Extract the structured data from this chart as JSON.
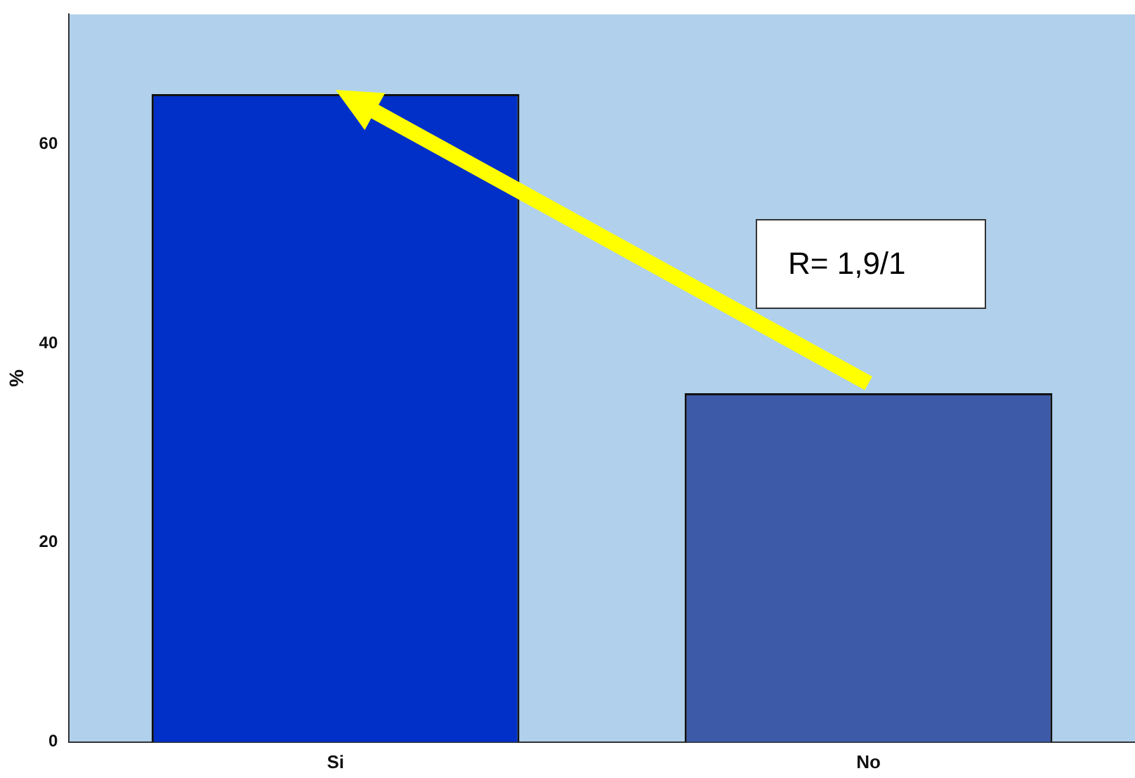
{
  "chart_data": {
    "type": "bar",
    "ylabel": "%",
    "categories": [
      "Si",
      "No"
    ],
    "colors": [
      "#0030c8",
      "#3d5aa8"
    ],
    "values": [
      65,
      35
    ],
    "ylim": [
      0,
      73
    ],
    "yticks": [
      0,
      20,
      40,
      60
    ],
    "grid": false,
    "legend": false,
    "annotations": [
      "R= 1,9/1"
    ]
  }
}
